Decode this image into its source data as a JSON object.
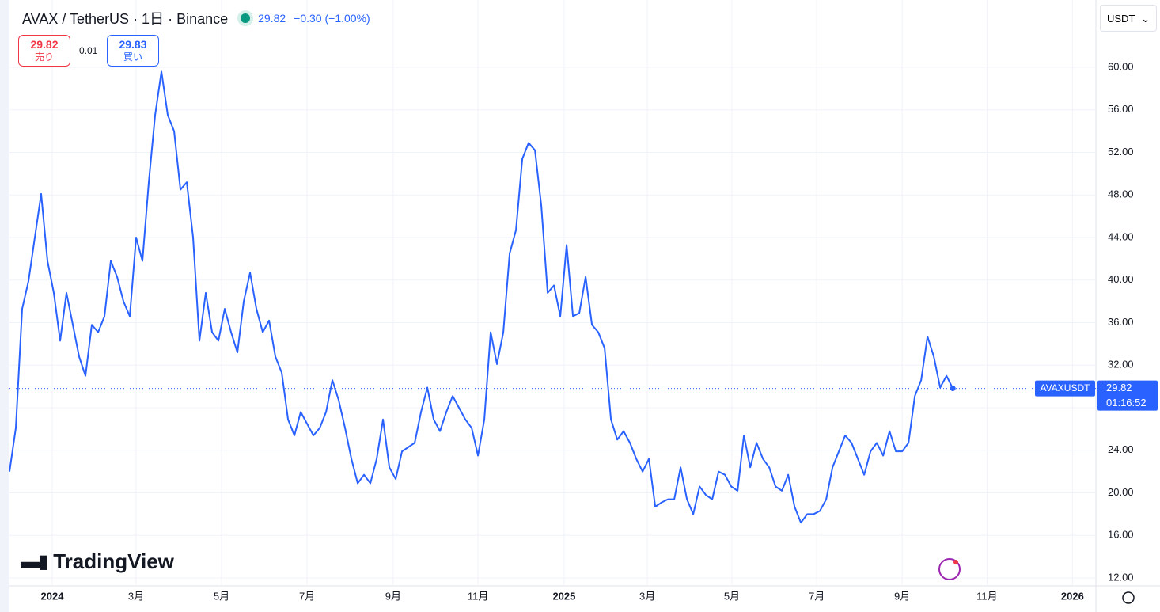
{
  "header": {
    "symbol": "AVAX / TetherUS · 1日 · Binance",
    "price": "29.82",
    "change": "−0.30 (−1.00%)",
    "sell_price": "29.82",
    "sell_label": "売り",
    "spread": "0.01",
    "buy_price": "29.83",
    "buy_label": "買い",
    "currency": "USDT",
    "logo": "TradingView"
  },
  "chart_data": {
    "type": "line",
    "series": [
      {
        "name": "AVAXUSDT",
        "color": "#2962ff",
        "values": [
          22.0,
          26.1,
          37.3,
          39.9,
          44.0,
          48.1,
          41.8,
          38.8,
          34.3,
          38.8,
          35.8,
          32.8,
          31.0,
          35.8,
          35.1,
          36.6,
          41.8,
          40.3,
          38.0,
          36.6,
          44.0,
          41.8,
          49.2,
          55.5,
          59.6,
          55.5,
          54.0,
          48.5,
          49.2,
          44.0,
          34.3,
          38.8,
          35.1,
          34.3,
          37.3,
          35.1,
          33.2,
          38.0,
          40.7,
          37.3,
          35.1,
          36.2,
          32.8,
          31.3,
          26.9,
          25.4,
          27.6,
          26.5,
          25.4,
          26.1,
          27.6,
          30.6,
          28.7,
          26.1,
          23.2,
          20.9,
          21.7,
          20.9,
          23.2,
          26.9,
          22.4,
          21.3,
          23.9,
          24.3,
          24.7,
          27.6,
          29.9,
          26.9,
          25.8,
          27.6,
          29.1,
          28.0,
          26.9,
          26.1,
          23.5,
          26.9,
          35.1,
          32.1,
          35.1,
          42.5,
          44.7,
          51.4,
          52.9,
          52.2,
          47.0,
          38.8,
          39.5,
          36.6,
          43.3,
          36.6,
          36.9,
          40.3,
          35.8,
          35.1,
          33.6,
          26.9,
          25.0,
          25.8,
          24.7,
          23.2,
          22.0,
          23.2,
          18.7,
          19.1,
          19.4,
          19.4,
          22.4,
          19.4,
          18.0,
          20.6,
          19.8,
          19.4,
          22.0,
          21.7,
          20.6,
          20.2,
          25.4,
          22.4,
          24.7,
          23.2,
          22.4,
          20.6,
          20.2,
          21.7,
          18.7,
          17.2,
          18.0,
          18.0,
          18.3,
          19.4,
          22.4,
          23.9,
          25.4,
          24.7,
          23.2,
          21.7,
          23.9,
          24.7,
          23.5,
          25.8,
          23.9,
          23.9,
          24.7,
          29.1,
          30.6,
          34.7,
          32.8,
          29.9,
          31.0,
          29.82
        ]
      }
    ],
    "last_price": 29.82,
    "last_price_label": "29.82",
    "countdown": "01:16:52",
    "xlim": [
      0,
      171.6
    ],
    "xticks": [
      {
        "value": 6.75,
        "label": "2024"
      },
      {
        "value": 20,
        "label": "3月"
      },
      {
        "value": 33.5,
        "label": "5月"
      },
      {
        "value": 47,
        "label": "7月"
      },
      {
        "value": 60.6,
        "label": "9月"
      },
      {
        "value": 74,
        "label": "11月"
      },
      {
        "value": 87.6,
        "label": "2025"
      },
      {
        "value": 100.75,
        "label": "3月"
      },
      {
        "value": 114.1,
        "label": "5月"
      },
      {
        "value": 127.5,
        "label": "7月"
      },
      {
        "value": 141,
        "label": "9月"
      },
      {
        "value": 154.4,
        "label": "11月"
      },
      {
        "value": 167.9,
        "label": "2026"
      }
    ],
    "ylim": [
      11.26,
      65.73
    ],
    "yticks": [
      {
        "value": 12,
        "label": "12.00"
      },
      {
        "value": 16,
        "label": "16.00"
      },
      {
        "value": 20,
        "label": "20.00"
      },
      {
        "value": 24,
        "label": "24.00"
      },
      {
        "value": 28,
        "label": "28.00"
      },
      {
        "value": 32,
        "label": "32.00"
      },
      {
        "value": 36,
        "label": "36.00"
      },
      {
        "value": 40,
        "label": "40.00"
      },
      {
        "value": 44,
        "label": "44.00"
      },
      {
        "value": 48,
        "label": "48.00"
      },
      {
        "value": 52,
        "label": "52.00"
      },
      {
        "value": 56,
        "label": "56.00"
      },
      {
        "value": 60,
        "label": "60.00"
      }
    ],
    "grid": true
  }
}
